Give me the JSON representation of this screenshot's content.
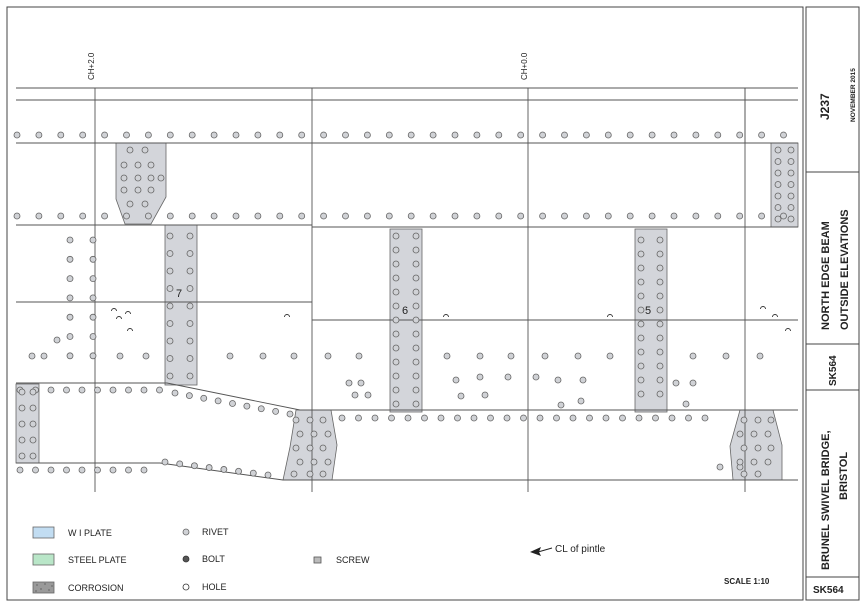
{
  "chainages": [
    "CH+2.0",
    "CH+0.0"
  ],
  "panel_numbers": [
    "7",
    "6",
    "5"
  ],
  "legend": {
    "wi_plate": "W I PLATE",
    "steel_plate": "STEEL PLATE",
    "corrosion": "CORROSION",
    "rivet": "RIVET",
    "bolt": "BOLT",
    "hole": "HOLE",
    "screw": "SCREW",
    "pintle": "CL of pintle",
    "scale": "SCALE 1:10"
  },
  "title_block": {
    "job": "J237",
    "date": "NOVEMBER 2015",
    "title_line1": "NORTH EDGE BEAM",
    "title_line2": "OUTSIDE ELEVATIONS",
    "ref_side": "SK564",
    "bridge_line1": "BRUNEL SWIVEL BRIDGE,",
    "bridge_line2": "BRISTOL",
    "ref_bottom": "SK564"
  },
  "colors": {
    "wi_plate": "#c2ddf2",
    "steel_plate": "#b9e6c8",
    "plate_grey": "#d3d5da",
    "line": "#444444"
  }
}
